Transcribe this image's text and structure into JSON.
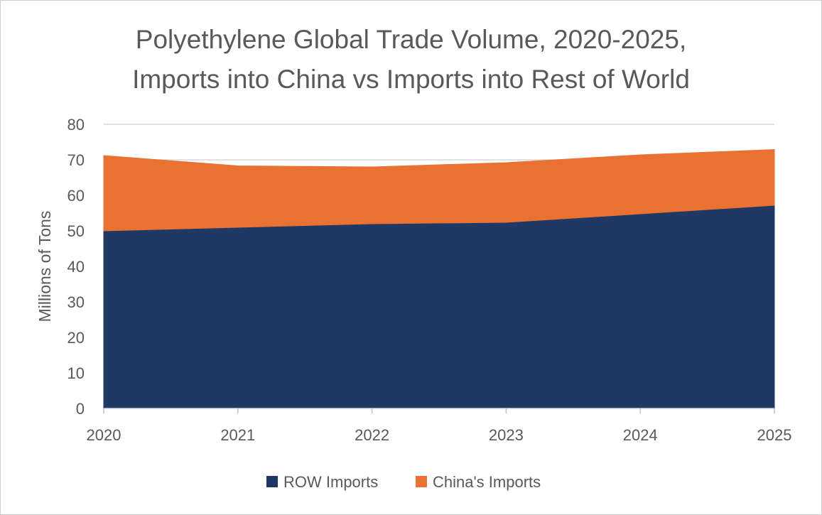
{
  "chart_data": {
    "type": "area",
    "stacked": true,
    "title": [
      "Polyethylene Global Trade Volume, 2020-2025,",
      "Imports into China vs Imports into Rest of World"
    ],
    "xlabel": "",
    "ylabel": "Millions of Tons",
    "x": [
      "2020",
      "2021",
      "2022",
      "2023",
      "2024",
      "2025"
    ],
    "ylim": [
      0,
      80
    ],
    "yticks": [
      "0",
      "10",
      "20",
      "30",
      "40",
      "50",
      "60",
      "70",
      "80"
    ],
    "grid": true,
    "legend": "bottom",
    "series": [
      {
        "name": "ROW Imports",
        "color": "#1F3864",
        "values": [
          50,
          51,
          52,
          52.4,
          54.8,
          57.2
        ]
      },
      {
        "name": "China's Imports",
        "color": "#E97132",
        "values": [
          21.2,
          17.3,
          16,
          16.8,
          16.6,
          15.7
        ]
      }
    ]
  }
}
